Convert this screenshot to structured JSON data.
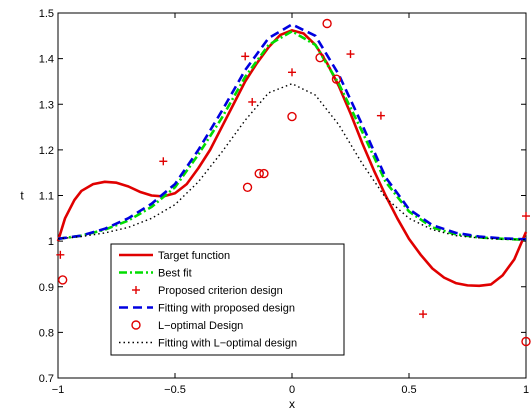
{
  "chart_data": {
    "type": "line",
    "title": "",
    "xlabel": "x",
    "ylabel": "t",
    "xlim": [
      -1,
      1
    ],
    "ylim": [
      0.7,
      1.5
    ],
    "xticks": [
      -1,
      -0.5,
      0,
      0.5,
      1
    ],
    "xtick_labels": [
      "−1",
      "−0.5",
      "0",
      "0.5",
      "1"
    ],
    "yticks": [
      0.7,
      0.8,
      0.9,
      1.0,
      1.1,
      1.2,
      1.3,
      1.4,
      1.5
    ],
    "ytick_labels": [
      "0.7",
      "0.8",
      "0.9",
      "1",
      "1.1",
      "1.2",
      "1.3",
      "1.4",
      "1.5"
    ],
    "grid": false,
    "legend_position": "bottom-center",
    "series": [
      {
        "name": "Target function",
        "kind": "line",
        "color": "#e00000",
        "style": "solid",
        "x": [
          -1,
          -0.97,
          -0.93,
          -0.9,
          -0.85,
          -0.8,
          -0.75,
          -0.7,
          -0.65,
          -0.6,
          -0.55,
          -0.5,
          -0.45,
          -0.4,
          -0.35,
          -0.3,
          -0.25,
          -0.2,
          -0.15,
          -0.1,
          -0.05,
          0,
          0.05,
          0.1,
          0.15,
          0.2,
          0.25,
          0.3,
          0.35,
          0.4,
          0.45,
          0.5,
          0.55,
          0.6,
          0.65,
          0.7,
          0.75,
          0.8,
          0.85,
          0.9,
          0.95,
          1
        ],
        "y": [
          1.0,
          1.05,
          1.09,
          1.11,
          1.125,
          1.13,
          1.128,
          1.12,
          1.108,
          1.1,
          1.098,
          1.105,
          1.125,
          1.16,
          1.2,
          1.25,
          1.3,
          1.35,
          1.39,
          1.425,
          1.452,
          1.462,
          1.455,
          1.43,
          1.39,
          1.34,
          1.28,
          1.215,
          1.155,
          1.1,
          1.05,
          1.005,
          0.97,
          0.94,
          0.92,
          0.908,
          0.903,
          0.902,
          0.905,
          0.925,
          0.96,
          1.02
        ]
      },
      {
        "name": "Best fit",
        "kind": "line",
        "color": "#00dd00",
        "style": "dashdot",
        "x": [
          -1,
          -0.9,
          -0.8,
          -0.7,
          -0.6,
          -0.5,
          -0.4,
          -0.3,
          -0.2,
          -0.1,
          0,
          0.1,
          0.2,
          0.3,
          0.4,
          0.5,
          0.6,
          0.7,
          0.8,
          0.9,
          1
        ],
        "y": [
          1.005,
          1.012,
          1.025,
          1.045,
          1.075,
          1.118,
          1.19,
          1.27,
          1.36,
          1.43,
          1.46,
          1.43,
          1.345,
          1.24,
          1.13,
          1.065,
          1.03,
          1.015,
          1.008,
          1.005,
          1.003
        ]
      },
      {
        "name": "Proposed criterion design",
        "kind": "scatter",
        "marker": "+",
        "color": "#e00000",
        "x": [
          -0.99,
          -0.55,
          -0.2,
          -0.17,
          0.0,
          0.25,
          0.38,
          0.56,
          1.0
        ],
        "y": [
          0.97,
          1.175,
          1.405,
          1.305,
          1.37,
          1.41,
          1.275,
          0.84,
          1.055
        ]
      },
      {
        "name": "Fitting with proposed design",
        "kind": "line",
        "color": "#0000e0",
        "style": "dashed",
        "x": [
          -1,
          -0.9,
          -0.8,
          -0.7,
          -0.6,
          -0.5,
          -0.4,
          -0.3,
          -0.2,
          -0.1,
          0,
          0.1,
          0.2,
          0.3,
          0.4,
          0.5,
          0.6,
          0.7,
          0.8,
          0.9,
          1
        ],
        "y": [
          1.005,
          1.012,
          1.027,
          1.05,
          1.082,
          1.125,
          1.2,
          1.285,
          1.375,
          1.445,
          1.475,
          1.45,
          1.365,
          1.255,
          1.14,
          1.07,
          1.035,
          1.018,
          1.01,
          1.006,
          1.004
        ]
      },
      {
        "name": "L−optimal Design",
        "kind": "scatter",
        "marker": "o",
        "color": "#e00000",
        "x": [
          -0.98,
          -0.19,
          -0.14,
          -0.12,
          0.0,
          0.12,
          0.15,
          0.19,
          1.0
        ],
        "y": [
          0.915,
          1.118,
          1.148,
          1.148,
          1.273,
          1.402,
          1.477,
          1.355,
          0.78
        ]
      },
      {
        "name": "Fitting with L−optimal design",
        "kind": "line",
        "color": "#000000",
        "style": "dotted",
        "x": [
          -1,
          -0.9,
          -0.8,
          -0.7,
          -0.6,
          -0.5,
          -0.4,
          -0.3,
          -0.2,
          -0.1,
          0,
          0.1,
          0.2,
          0.3,
          0.4,
          0.5,
          0.6,
          0.7,
          0.8,
          0.9,
          1
        ],
        "y": [
          1.005,
          1.01,
          1.018,
          1.03,
          1.05,
          1.08,
          1.13,
          1.195,
          1.265,
          1.325,
          1.345,
          1.32,
          1.255,
          1.17,
          1.095,
          1.05,
          1.025,
          1.012,
          1.007,
          1.004,
          1.003
        ]
      }
    ]
  }
}
